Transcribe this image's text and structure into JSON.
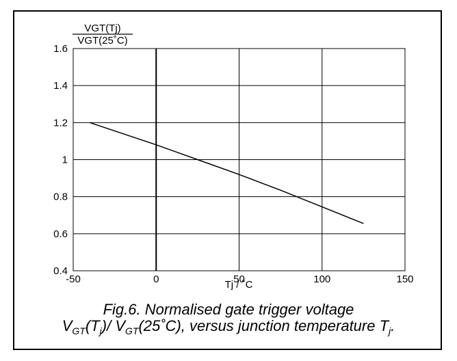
{
  "chart_data": {
    "type": "line",
    "ylabel_numerator": "VGT(Tj)",
    "ylabel_denominator": "VGT(25˚C)",
    "xlabel": "Tj / ˚C",
    "xlim": [
      -50,
      150
    ],
    "ylim": [
      0.4,
      1.6
    ],
    "xticks": [
      -50,
      0,
      50,
      100,
      150
    ],
    "xtick_labels": [
      "-50",
      "0",
      "50",
      "100",
      "150"
    ],
    "yticks": [
      0.4,
      0.6,
      0.8,
      1.0,
      1.2,
      1.4,
      1.6
    ],
    "ytick_labels": [
      "0.4",
      "0.6",
      "0.8",
      "1",
      "1.2",
      "1.4",
      "1.6"
    ],
    "grid": true,
    "series": [
      {
        "x": [
          -40,
          0,
          25,
          50,
          75,
          100,
          125
        ],
        "y": [
          1.2,
          1.08,
          1.0,
          0.92,
          0.835,
          0.745,
          0.655
        ]
      }
    ]
  },
  "caption": {
    "line1": "Fig.6.  Normalised gate trigger voltage",
    "v1": "V",
    "v1_sub": "GT",
    "t1_open": "(T",
    "t1_sub": "j",
    "t1_close": ")/ ",
    "v2": "V",
    "v2_sub": "GT",
    "mid": "(25˚C), versus junction temperature T",
    "t2_sub": "j",
    "end": "."
  }
}
